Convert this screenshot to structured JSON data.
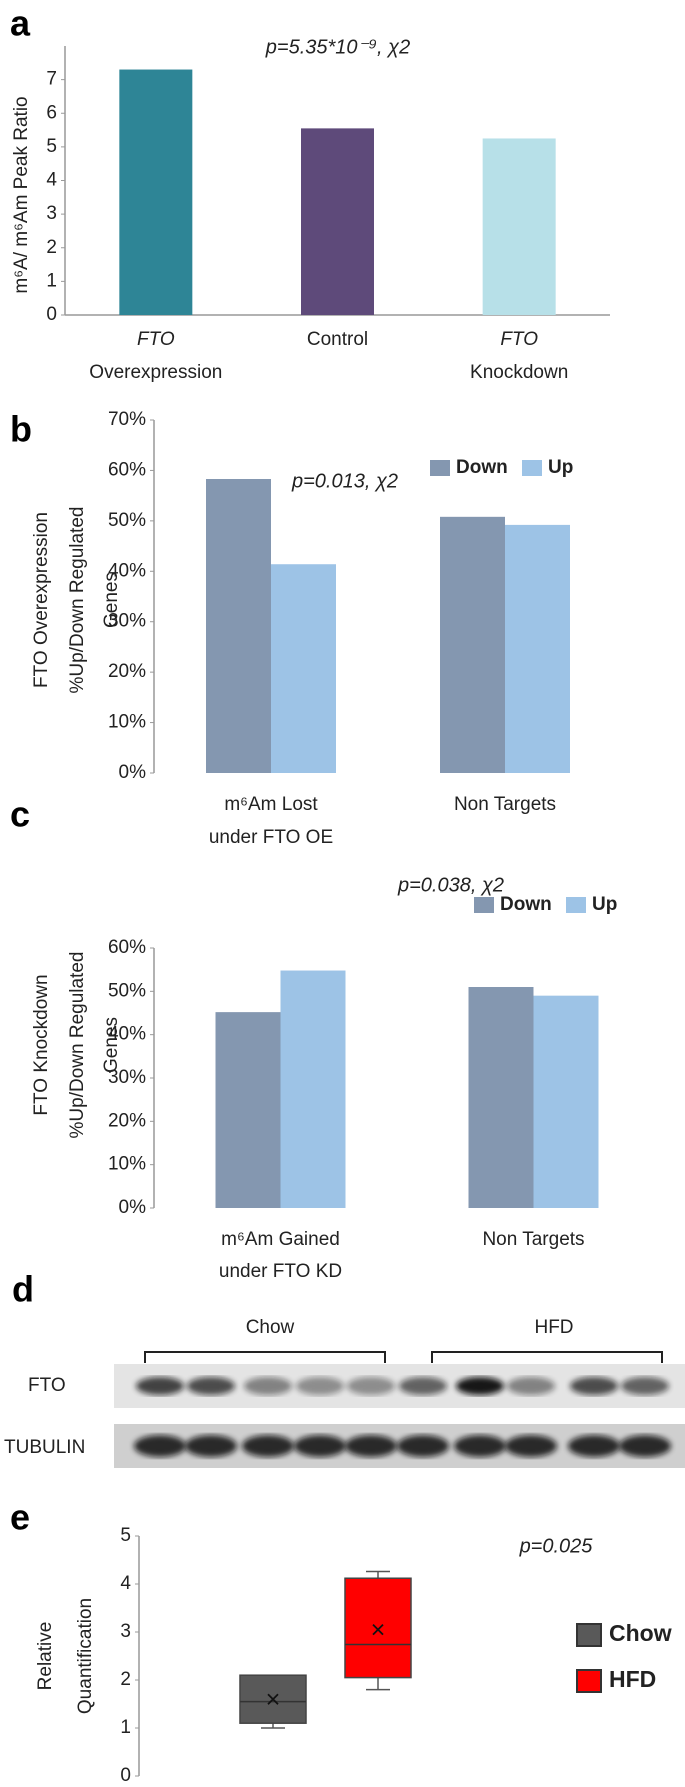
{
  "chart_data": [
    {
      "type": "bar",
      "panel": "a",
      "title": "p=5.35*10⁻⁹, χ2",
      "y_label": [
        "m⁶A/ m⁶Am Peak Ratio"
      ],
      "categories": [
        [
          "FTO",
          "Overexpression"
        ],
        [
          "Control"
        ],
        [
          "FTO",
          "Knockdown"
        ]
      ],
      "values": [
        7.3,
        5.55,
        5.25
      ],
      "colors": [
        "#2e8596",
        "#5e4a7a",
        "#b7e0e8"
      ],
      "ylim": [
        0,
        8
      ],
      "yticks": [
        0,
        1,
        2,
        3,
        4,
        5,
        6,
        7
      ]
    },
    {
      "type": "bar",
      "panel": "b",
      "title": "p=0.013, χ2",
      "y_label": [
        "FTO Overexpression",
        "%Up/Down Regulated",
        "Genes"
      ],
      "categories": [
        [
          "m⁶Am Lost",
          "under FTO OE"
        ],
        [
          "Non Targets"
        ]
      ],
      "series": [
        {
          "name": "Down",
          "color": "#8497b0",
          "values": [
            58.3,
            50.8
          ]
        },
        {
          "name": "Up",
          "color": "#9dc3e6",
          "values": [
            41.4,
            49.2
          ]
        }
      ],
      "ylim": [
        0,
        70
      ],
      "yticks": [
        {
          "value": 0,
          "label": "0%"
        },
        {
          "value": 10,
          "label": "10%"
        },
        {
          "value": 20,
          "label": "20%"
        },
        {
          "value": 30,
          "label": "30%"
        },
        {
          "value": 40,
          "label": "40%"
        },
        {
          "value": 50,
          "label": "50%"
        },
        {
          "value": 60,
          "label": "60%"
        },
        {
          "value": 70,
          "label": "70%"
        }
      ],
      "legend": "top-right"
    },
    {
      "type": "bar",
      "panel": "c",
      "title": "p=0.038, χ2",
      "y_label": [
        "FTO Knockdown",
        "%Up/Down Regulated",
        "Genes"
      ],
      "categories": [
        [
          "m⁶Am Gained",
          "under FTO KD"
        ],
        [
          "Non Targets"
        ]
      ],
      "series": [
        {
          "name": "Down",
          "color": "#8497b0",
          "values": [
            45.2,
            51.0
          ]
        },
        {
          "name": "Up",
          "color": "#9dc3e6",
          "values": [
            54.8,
            49.0
          ]
        }
      ],
      "ylim": [
        0,
        60
      ],
      "yticks": [
        {
          "value": 0,
          "label": "0%"
        },
        {
          "value": 10,
          "label": "10%"
        },
        {
          "value": 20,
          "label": "20%"
        },
        {
          "value": 30,
          "label": "30%"
        },
        {
          "value": 40,
          "label": "40%"
        },
        {
          "value": 50,
          "label": "50%"
        },
        {
          "value": 60,
          "label": "60%"
        }
      ],
      "legend": "top-right"
    },
    {
      "type": "box",
      "panel": "e",
      "annotation": "p=0.025",
      "y_label": [
        "Relative",
        "Quantification"
      ],
      "series": [
        {
          "name": "Chow",
          "color": "#595959",
          "min": 1.0,
          "q1": 1.1,
          "median": 1.55,
          "q3": 2.1,
          "max": 2.1,
          "mean": 1.6
        },
        {
          "name": "HFD",
          "color": "#ff0000",
          "min": 1.8,
          "q1": 2.05,
          "median": 2.74,
          "q3": 4.12,
          "max": 4.26,
          "mean": 3.05
        }
      ],
      "ylim": [
        0,
        5
      ],
      "yticks": [
        0,
        1,
        2,
        3,
        4,
        5
      ],
      "legend": "right"
    }
  ],
  "blot": {
    "panel": "d",
    "groups": [
      "Chow",
      "HFD"
    ],
    "rows": [
      "FTO",
      "TUBULIN"
    ]
  }
}
